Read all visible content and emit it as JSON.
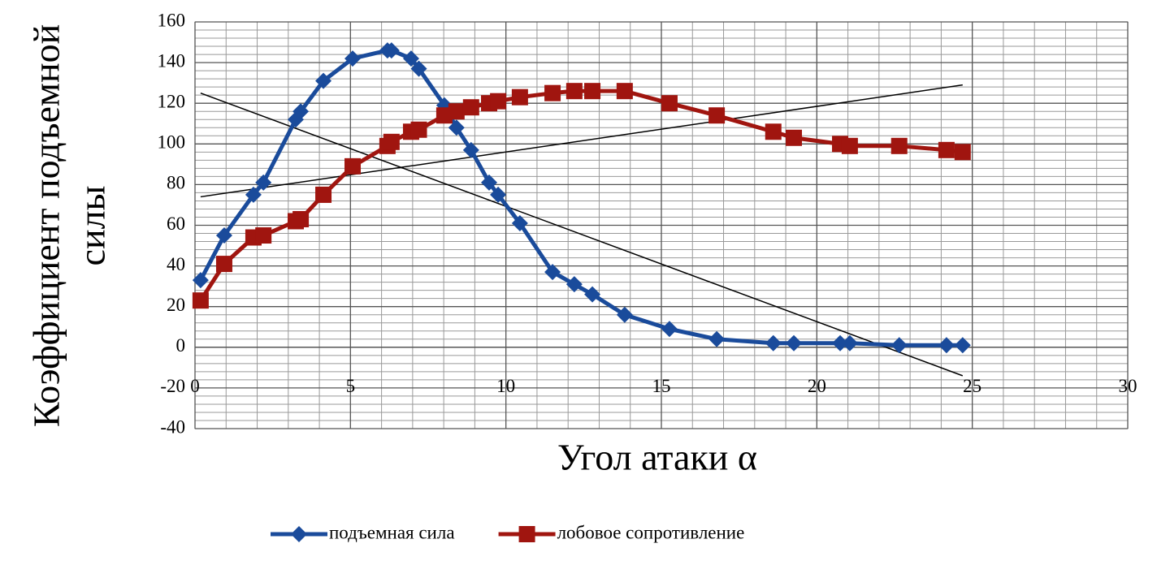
{
  "chart_data": {
    "type": "line",
    "x_label": "Угол атаки α",
    "y_label": [
      "Коэффициент подъемной",
      "силы"
    ],
    "x": [
      0.18,
      0.94,
      1.88,
      2.2,
      3.24,
      3.4,
      4.13,
      5.07,
      6.19,
      6.32,
      6.95,
      7.2,
      8.02,
      8.41,
      8.88,
      9.46,
      9.75,
      10.45,
      11.5,
      12.2,
      12.78,
      13.82,
      15.26,
      16.78,
      18.6,
      19.26,
      20.75,
      21.06,
      22.65,
      24.17,
      24.69
    ],
    "series": [
      {
        "name": "подъемная сила",
        "color": "#1a4b9b",
        "marker": "diamond",
        "values": [
          33,
          55,
          75,
          81,
          112,
          116,
          131,
          142,
          146,
          146,
          142,
          137,
          119,
          108,
          97,
          81,
          75,
          61,
          37,
          31,
          26,
          16,
          9,
          4,
          2,
          2,
          2,
          2,
          1,
          1,
          1
        ]
      },
      {
        "name": "лобовое сопротивление",
        "color": "#a0150f",
        "marker": "square",
        "values": [
          23,
          41,
          54,
          55,
          62,
          63,
          75,
          89,
          99,
          101,
          106,
          107,
          114,
          116,
          118,
          120,
          121,
          123,
          125,
          126,
          126,
          126,
          120,
          114,
          106,
          103,
          100,
          99,
          99,
          97,
          96
        ]
      }
    ],
    "trendlines": [
      {
        "color": "#000000",
        "x": [
          0.18,
          24.69
        ],
        "values": [
          125,
          -14
        ]
      },
      {
        "color": "#000000",
        "x": [
          0.18,
          24.69
        ],
        "values": [
          74,
          129
        ]
      }
    ],
    "xlim": [
      0,
      30
    ],
    "xticks": [
      0,
      5,
      10,
      15,
      20,
      25,
      30
    ],
    "ylim": [
      -40,
      160
    ],
    "yticks": [
      -40,
      -20,
      0,
      20,
      40,
      60,
      80,
      100,
      120,
      140,
      160
    ],
    "grid": true,
    "minor_grid": true,
    "legend": "bottom"
  }
}
